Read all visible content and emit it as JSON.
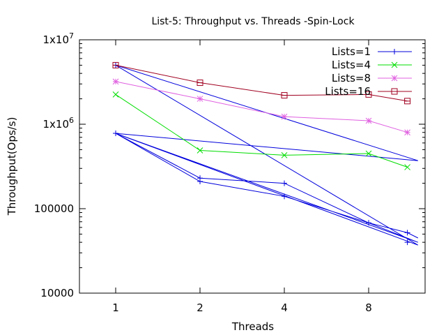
{
  "chart_data": {
    "type": "line",
    "title": "List-5: Throughput vs. Threads -Spin-Lock",
    "xlabel": "Threads",
    "ylabel": "Throughput(Ops/s)",
    "y_scale": "log",
    "x_scale": "log2",
    "ylim": [
      10000,
      10000000
    ],
    "xlim": [
      0.6,
      11.5
    ],
    "grid": false,
    "legend_position": "top-right",
    "x_ticks": [
      {
        "value": 1,
        "label": "1"
      },
      {
        "value": 2,
        "label": "2"
      },
      {
        "value": 4,
        "label": "4"
      },
      {
        "value": 8,
        "label": "8"
      }
    ],
    "y_ticks": [
      {
        "value": 10000,
        "label": "10000",
        "sup": ""
      },
      {
        "value": 100000,
        "label": "100000",
        "sup": ""
      },
      {
        "value": 1000000,
        "label": "1x10",
        "sup": "6"
      },
      {
        "value": 10000000,
        "label": "1x10",
        "sup": "7"
      }
    ],
    "series": [
      {
        "name": "Lists=1",
        "color": "#0000dd",
        "marker": "plus",
        "points": [
          [
            1,
            780000
          ],
          [
            12,
            370000
          ],
          [
            1,
            5000000
          ],
          [
            12,
            37000
          ],
          [
            1,
            780000
          ],
          [
            2,
            230000
          ],
          [
            4,
            200000
          ],
          [
            8,
            68000
          ],
          [
            12,
            40000
          ],
          [
            1,
            780000
          ],
          [
            2,
            210000
          ],
          [
            4,
            140000
          ],
          [
            8,
            68000
          ],
          [
            11,
            52000
          ],
          [
            12,
            45000
          ]
        ],
        "markers": [
          [
            1,
            780000
          ],
          [
            1,
            5000000
          ],
          [
            2,
            230000
          ],
          [
            2,
            210000
          ],
          [
            4,
            200000
          ],
          [
            4,
            140000
          ],
          [
            8,
            68000
          ],
          [
            11,
            40000
          ],
          [
            11,
            52000
          ]
        ]
      },
      {
        "name": "Lists=4",
        "color": "#00dd00",
        "marker": "cross",
        "points": [
          [
            1,
            2250000
          ],
          [
            2,
            490000
          ],
          [
            4,
            430000
          ],
          [
            8,
            450000
          ],
          [
            11,
            310000
          ]
        ],
        "markers": [
          [
            1,
            2250000
          ],
          [
            2,
            490000
          ],
          [
            4,
            430000
          ],
          [
            8,
            450000
          ],
          [
            11,
            310000
          ]
        ]
      },
      {
        "name": "Lists=8",
        "color": "#e060e0",
        "marker": "star",
        "points": [
          [
            1,
            3200000
          ],
          [
            2,
            2000000
          ],
          [
            4,
            1230000
          ],
          [
            8,
            1100000
          ],
          [
            11,
            800000
          ]
        ],
        "markers": [
          [
            1,
            3200000
          ],
          [
            2,
            2000000
          ],
          [
            4,
            1230000
          ],
          [
            8,
            1100000
          ],
          [
            11,
            800000
          ]
        ]
      },
      {
        "name": "Lists=16",
        "color": "#a00020",
        "marker": "box",
        "points": [
          [
            1,
            5000000
          ],
          [
            2,
            3100000
          ],
          [
            4,
            2200000
          ],
          [
            8,
            2250000
          ],
          [
            11,
            1880000
          ]
        ],
        "markers": [
          [
            1,
            5000000
          ],
          [
            2,
            3100000
          ],
          [
            4,
            2200000
          ],
          [
            8,
            2250000
          ],
          [
            11,
            1880000
          ]
        ]
      }
    ]
  }
}
